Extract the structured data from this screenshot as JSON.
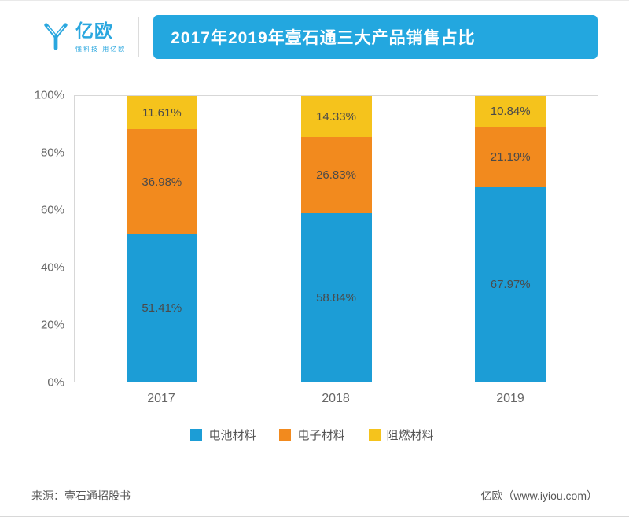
{
  "header": {
    "brand": "亿欧",
    "tagline": "懂科技 用亿欧",
    "title": "2017年2019年壹石通三大产品销售占比",
    "banner_color": "#23a7df"
  },
  "chart_data": {
    "type": "bar",
    "stacked": true,
    "percent_stack": true,
    "categories": [
      "2017",
      "2018",
      "2019"
    ],
    "series": [
      {
        "name": "电池材料",
        "color": "#1c9dd6",
        "values": [
          51.41,
          58.84,
          67.97
        ]
      },
      {
        "name": "电子材料",
        "color": "#f28a1e",
        "values": [
          36.98,
          26.83,
          21.19
        ]
      },
      {
        "name": "阻燃材料",
        "color": "#f5c31c",
        "values": [
          11.61,
          14.33,
          10.84
        ]
      }
    ],
    "title": "2017年2019年壹石通三大产品销售占比",
    "xlabel": "",
    "ylabel": "",
    "ylim": [
      0,
      100
    ],
    "yticks": [
      "0%",
      "20%",
      "40%",
      "60%",
      "80%",
      "100%"
    ],
    "grid": false,
    "legend_position": "bottom"
  },
  "footer": {
    "source": "来源：壹石通招股书",
    "credit": "亿欧（www.iyiou.com）"
  }
}
